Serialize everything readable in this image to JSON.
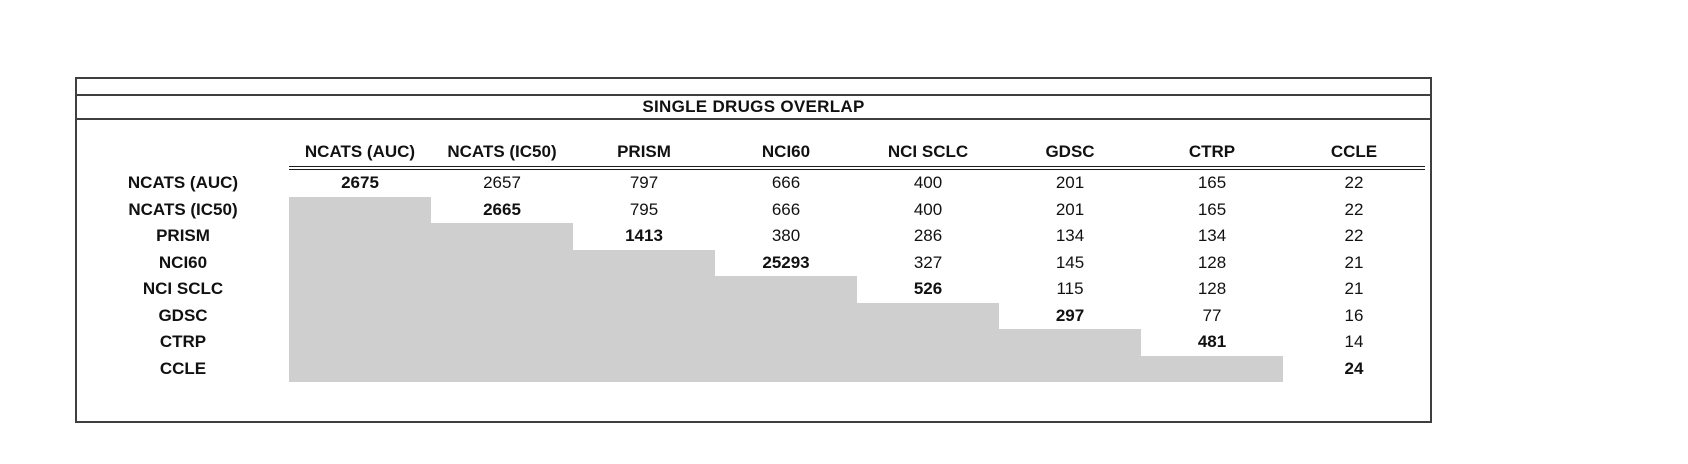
{
  "title_bar": {
    "title": "SINGLE DRUGS OVERLAP"
  },
  "chart_data": {
    "type": "table",
    "title": "SINGLE DRUGS OVERLAP",
    "columns": [
      "NCATS (AUC)",
      "NCATS (IC50)",
      "PRISM",
      "NCI60",
      "NCI SCLC",
      "GDSC",
      "CTRP",
      "CCLE"
    ],
    "rows": [
      {
        "label": "NCATS (AUC)",
        "values": [
          "2675",
          "2657",
          "797",
          "666",
          "400",
          "201",
          "165",
          "22"
        ]
      },
      {
        "label": "NCATS (IC50)",
        "values": [
          "",
          "2665",
          "795",
          "666",
          "400",
          "201",
          "165",
          "22"
        ]
      },
      {
        "label": "PRISM",
        "values": [
          "",
          "",
          "1413",
          "380",
          "286",
          "134",
          "134",
          "22"
        ]
      },
      {
        "label": "NCI60",
        "values": [
          "",
          "",
          "",
          "25293",
          "327",
          "145",
          "128",
          "21"
        ]
      },
      {
        "label": "NCI SCLC",
        "values": [
          "",
          "",
          "",
          "",
          "526",
          "115",
          "128",
          "21"
        ]
      },
      {
        "label": "GDSC",
        "values": [
          "",
          "",
          "",
          "",
          "",
          "297",
          "77",
          "16"
        ]
      },
      {
        "label": "CTRP",
        "values": [
          "",
          "",
          "",
          "",
          "",
          "",
          "481",
          "14"
        ]
      },
      {
        "label": "CCLE",
        "values": [
          "",
          "",
          "",
          "",
          "",
          "",
          "",
          "24"
        ]
      }
    ],
    "layout_hints": {
      "lower_triangle_shaded": true,
      "diagonal_bold": true,
      "header_underline": "double",
      "legend": "none",
      "grid": "off"
    }
  },
  "colors": {
    "shaded_cell": "#d0cfcf",
    "border": "#3f3f3f",
    "text": "#111111",
    "background": "#ffffff"
  }
}
